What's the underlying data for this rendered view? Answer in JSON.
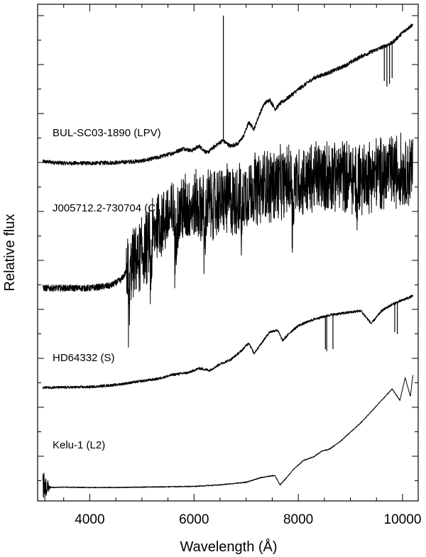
{
  "chart_data": {
    "type": "line",
    "xlabel": "Wavelength  (Å)",
    "ylabel": "Relative flux",
    "xlim": [
      3000,
      10300
    ],
    "xticks": [
      4000,
      6000,
      8000,
      10000
    ],
    "xtick_labels": [
      "4000",
      "6000",
      "8000",
      "10000"
    ],
    "yaxis_tick_labels_shown": false,
    "grid": false,
    "legend": "none",
    "line_color": "#000000",
    "series": [
      {
        "name": "BUL-SC03-1890 (LPV)",
        "noise": 0.035,
        "points": [
          [
            3100,
            0.03
          ],
          [
            3500,
            0.0
          ],
          [
            4000,
            0.0
          ],
          [
            4500,
            0.01
          ],
          [
            5000,
            0.04
          ],
          [
            5300,
            0.1
          ],
          [
            5600,
            0.18
          ],
          [
            5800,
            0.26
          ],
          [
            5950,
            0.22
          ],
          [
            6100,
            0.3
          ],
          [
            6250,
            0.18
          ],
          [
            6400,
            0.3
          ],
          [
            6550,
            0.4
          ],
          [
            6700,
            0.3
          ],
          [
            6850,
            0.35
          ],
          [
            6950,
            0.48
          ],
          [
            7050,
            0.72
          ],
          [
            7150,
            0.6
          ],
          [
            7250,
            0.85
          ],
          [
            7350,
            1.05
          ],
          [
            7450,
            1.12
          ],
          [
            7560,
            0.95
          ],
          [
            7650,
            1.05
          ],
          [
            7800,
            1.15
          ],
          [
            8000,
            1.3
          ],
          [
            8300,
            1.5
          ],
          [
            8600,
            1.6
          ],
          [
            8900,
            1.72
          ],
          [
            9200,
            1.88
          ],
          [
            9500,
            2.0
          ],
          [
            9800,
            2.12
          ],
          [
            10000,
            2.3
          ],
          [
            10200,
            2.45
          ]
        ],
        "spikes": [
          [
            6563,
            2.6
          ]
        ],
        "dips": [
          [
            9650,
            1.45
          ],
          [
            9700,
            1.35
          ],
          [
            9750,
            1.4
          ],
          [
            9800,
            1.5
          ]
        ]
      },
      {
        "name": "J005712.2-730704 (C)",
        "noise": 0.04,
        "points": [
          [
            3100,
            0.0
          ],
          [
            3500,
            0.0
          ],
          [
            4000,
            0.0
          ],
          [
            4400,
            0.03
          ],
          [
            4600,
            0.1
          ],
          [
            4700,
            0.2
          ],
          [
            4900,
            0.35
          ],
          [
            5100,
            0.5
          ],
          [
            5300,
            0.8
          ],
          [
            5600,
            0.9
          ],
          [
            5900,
            0.98
          ],
          [
            6200,
            1.0
          ],
          [
            6500,
            1.05
          ],
          [
            6800,
            1.1
          ],
          [
            7100,
            1.2
          ],
          [
            7400,
            1.25
          ],
          [
            7700,
            1.3
          ],
          [
            8000,
            1.3
          ],
          [
            8300,
            1.35
          ],
          [
            8600,
            1.4
          ],
          [
            8900,
            1.38
          ],
          [
            9200,
            1.36
          ],
          [
            9500,
            1.4
          ],
          [
            9800,
            1.42
          ],
          [
            10200,
            1.45
          ]
        ],
        "band_heads": [
          4740,
          5160,
          5630,
          6190,
          6900,
          7880,
          9110
        ],
        "band_depth": 0.6,
        "fill_band": 0.45
      },
      {
        "name": "HD64332 (S)",
        "noise": 0.03,
        "points": [
          [
            3100,
            0.0
          ],
          [
            3500,
            0.0
          ],
          [
            4000,
            0.01
          ],
          [
            4500,
            0.06
          ],
          [
            5000,
            0.15
          ],
          [
            5300,
            0.2
          ],
          [
            5600,
            0.3
          ],
          [
            5900,
            0.35
          ],
          [
            6100,
            0.45
          ],
          [
            6300,
            0.4
          ],
          [
            6500,
            0.55
          ],
          [
            6700,
            0.65
          ],
          [
            6900,
            0.85
          ],
          [
            7050,
            1.05
          ],
          [
            7150,
            0.8
          ],
          [
            7300,
            1.05
          ],
          [
            7450,
            1.3
          ],
          [
            7600,
            1.35
          ],
          [
            7700,
            1.1
          ],
          [
            7850,
            1.3
          ],
          [
            8000,
            1.45
          ],
          [
            8300,
            1.6
          ],
          [
            8600,
            1.7
          ],
          [
            8900,
            1.75
          ],
          [
            9200,
            1.8
          ],
          [
            9400,
            1.5
          ],
          [
            9600,
            1.8
          ],
          [
            9800,
            1.95
          ],
          [
            10000,
            2.05
          ],
          [
            10200,
            2.15
          ]
        ],
        "dips": [
          [
            8520,
            0.9
          ],
          [
            8545,
            0.85
          ],
          [
            8665,
            0.9
          ],
          [
            9850,
            1.3
          ],
          [
            9900,
            1.25
          ]
        ]
      },
      {
        "name": "Kelu-1 (L2)",
        "noise": 0.012,
        "points": [
          [
            3100,
            0.0
          ],
          [
            3300,
            -0.02
          ],
          [
            3500,
            -0.01
          ],
          [
            4000,
            -0.02
          ],
          [
            4500,
            -0.02
          ],
          [
            5000,
            -0.01
          ],
          [
            5500,
            0.0
          ],
          [
            6000,
            0.01
          ],
          [
            6500,
            0.05
          ],
          [
            7000,
            0.12
          ],
          [
            7300,
            0.25
          ],
          [
            7550,
            0.3
          ],
          [
            7650,
            0.05
          ],
          [
            7750,
            0.2
          ],
          [
            7900,
            0.45
          ],
          [
            8100,
            0.7
          ],
          [
            8300,
            0.8
          ],
          [
            8450,
            0.95
          ],
          [
            8600,
            1.0
          ],
          [
            8800,
            1.2
          ],
          [
            9000,
            1.45
          ],
          [
            9200,
            1.7
          ],
          [
            9400,
            2.0
          ],
          [
            9600,
            2.3
          ],
          [
            9800,
            2.6
          ],
          [
            9950,
            2.3
          ],
          [
            10050,
            2.9
          ],
          [
            10150,
            2.4
          ],
          [
            10200,
            3.0
          ]
        ],
        "start_burst": 0.5
      }
    ]
  }
}
